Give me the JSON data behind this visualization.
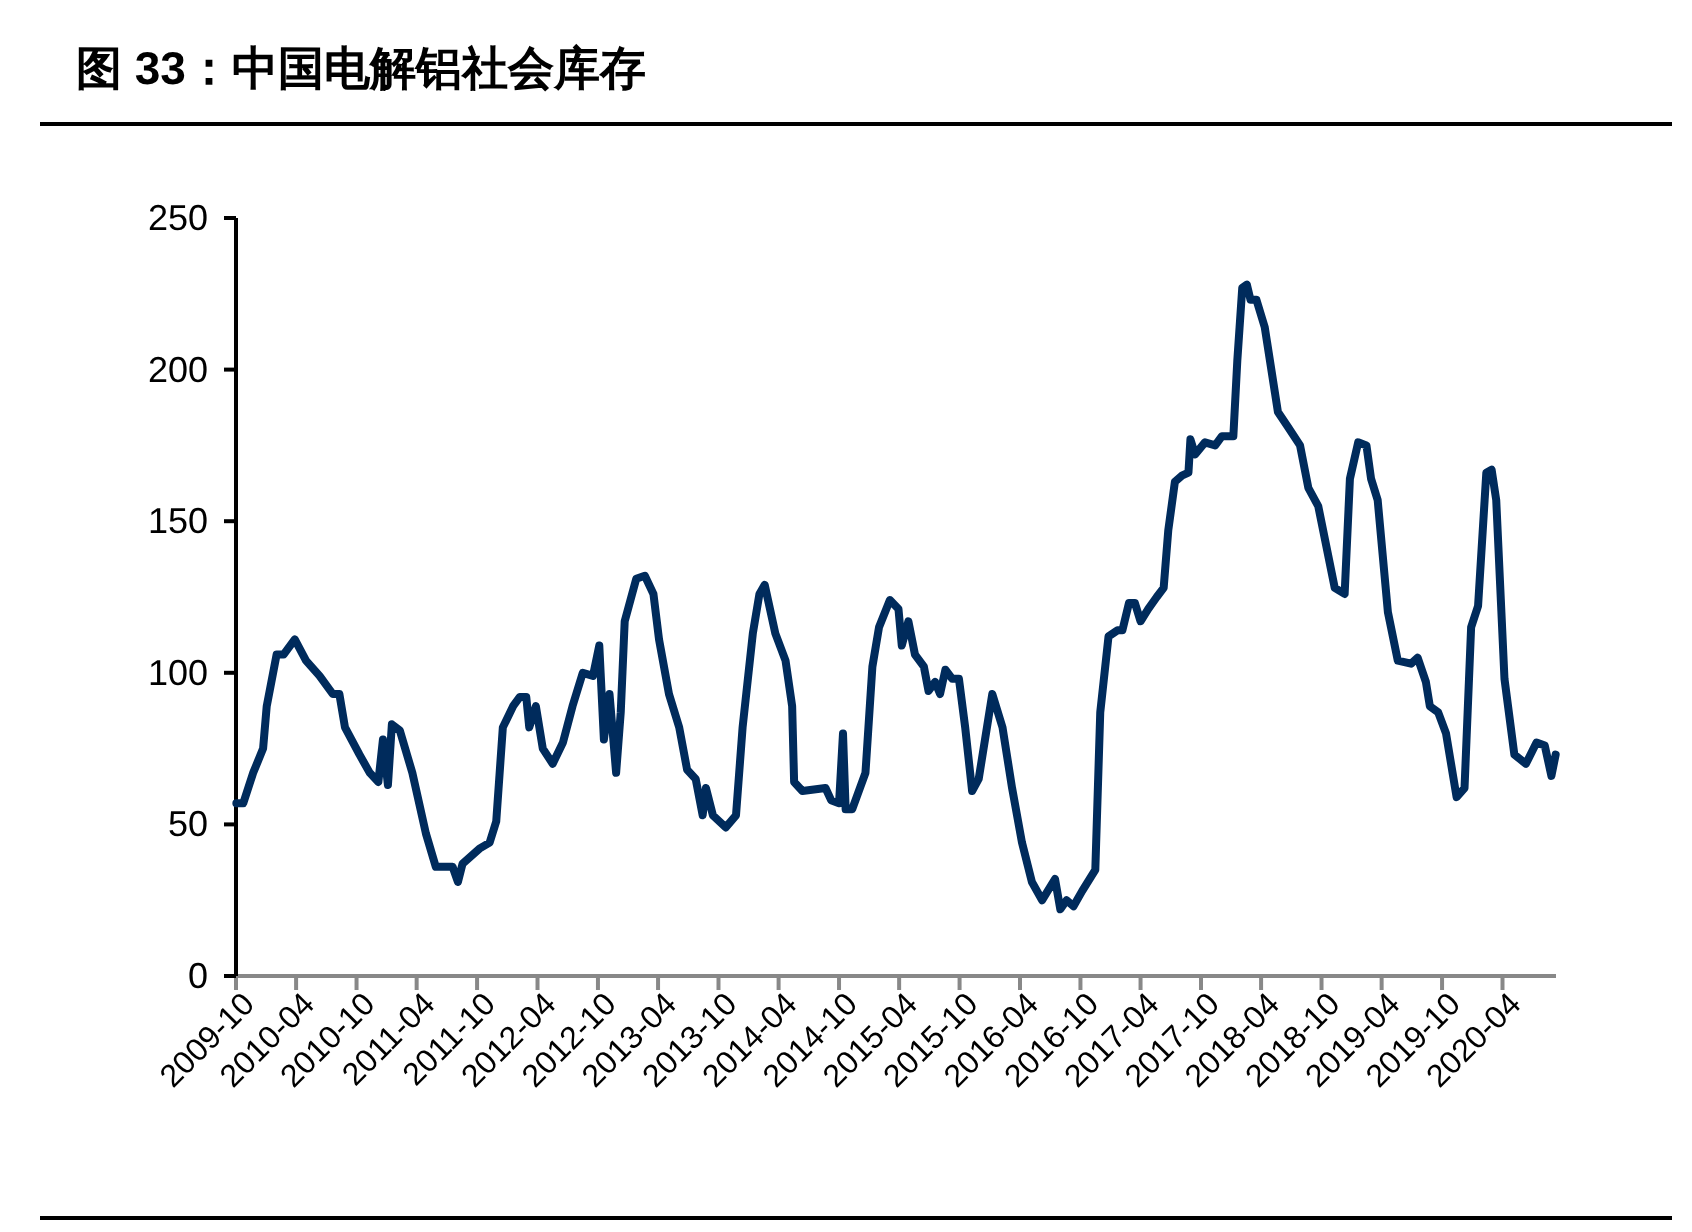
{
  "chart_data": {
    "type": "line",
    "title": "图 33：中国电解铝社会库存",
    "x": [
      "2009-10-02",
      "2009-10-23",
      "2009-11-22",
      "2009-12-22",
      "2010-01-02",
      "2010-02-01",
      "2010-02-22",
      "2010-03-28",
      "2010-05-01",
      "2010-06-11",
      "2010-07-21",
      "2010-08-10",
      "2010-08-27",
      "2010-10-10",
      "2010-11-10",
      "2010-12-06",
      "2010-12-20",
      "2011-01-04",
      "2011-01-16",
      "2011-02-09",
      "2011-03-19",
      "2011-04-29",
      "2011-05-29",
      "2011-07-19",
      "2011-08-04",
      "2011-08-18",
      "2011-10-08",
      "2011-11-08",
      "2011-11-28",
      "2011-12-18",
      "2012-01-18",
      "2012-02-07",
      "2012-02-27",
      "2012-03-07",
      "2012-03-27",
      "2012-04-17",
      "2012-05-17",
      "2012-06-17",
      "2012-07-16",
      "2012-08-16",
      "2012-09-16",
      "2012-10-05",
      "2012-10-19",
      "2012-11-05",
      "2012-11-25",
      "2012-12-09",
      "2012-12-21",
      "2013-01-25",
      "2013-02-20",
      "2013-03-18",
      "2013-04-04",
      "2013-05-04",
      "2013-06-04",
      "2013-06-28",
      "2013-07-24",
      "2013-08-14",
      "2013-08-24",
      "2013-09-14",
      "2013-10-23",
      "2013-11-23",
      "2013-12-13",
      "2014-01-13",
      "2014-02-02",
      "2014-02-18",
      "2014-03-22",
      "2014-04-22",
      "2014-05-12",
      "2014-05-18",
      "2014-06-12",
      "2014-08-21",
      "2014-09-07",
      "2014-10-01",
      "2014-10-13",
      "2014-10-21",
      "2014-11-10",
      "2014-12-20",
      "2015-01-10",
      "2015-01-30",
      "2015-03-04",
      "2015-03-30",
      "2015-04-09",
      "2015-04-29",
      "2015-05-19",
      "2015-06-15",
      "2015-06-29",
      "2015-07-19",
      "2015-08-03",
      "2015-08-19",
      "2015-09-09",
      "2015-09-29",
      "2015-10-18",
      "2015-11-08",
      "2015-11-28",
      "2016-01-08",
      "2016-02-08",
      "2016-03-08",
      "2016-04-07",
      "2016-05-07",
      "2016-06-07",
      "2016-07-16",
      "2016-08-01",
      "2016-08-20",
      "2016-09-10",
      "2016-10-06",
      "2016-11-15",
      "2016-11-30",
      "2016-12-25",
      "2017-01-21",
      "2017-02-05",
      "2017-02-25",
      "2017-03-15",
      "2017-04-01",
      "2017-04-24",
      "2017-05-20",
      "2017-06-10",
      "2017-06-24",
      "2017-07-14",
      "2017-08-04",
      "2017-08-24",
      "2017-08-30",
      "2017-09-13",
      "2017-10-13",
      "2017-11-13",
      "2017-12-03",
      "2018-01-07",
      "2018-01-19",
      "2018-02-03",
      "2018-02-17",
      "2018-02-28",
      "2018-03-18",
      "2018-04-12",
      "2018-05-22",
      "2018-06-22",
      "2018-07-28",
      "2018-08-22",
      "2018-09-21",
      "2018-11-10",
      "2018-12-10",
      "2018-12-26",
      "2019-01-20",
      "2019-02-14",
      "2019-02-28",
      "2019-03-20",
      "2019-04-20",
      "2019-05-20",
      "2019-06-29",
      "2019-07-19",
      "2019-08-13",
      "2019-08-25",
      "2019-09-19",
      "2019-10-13",
      "2019-11-14",
      "2019-12-08",
      "2019-12-28",
      "2020-01-18",
      "2020-02-12",
      "2020-02-28",
      "2020-03-13",
      "2020-04-07",
      "2020-05-07",
      "2020-06-11",
      "2020-07-13",
      "2020-08-07",
      "2020-08-27",
      "2020-09-09"
    ],
    "series": [
      {
        "color": "#002b5c",
        "values": [
          57,
          57,
          67,
          75,
          89,
          106,
          106,
          111,
          104,
          99,
          93,
          93,
          82,
          73,
          67,
          64,
          78,
          63,
          83,
          81,
          67,
          47,
          36,
          36,
          31,
          37,
          42,
          44,
          51,
          82,
          89,
          92,
          92,
          82,
          89,
          75,
          70,
          77,
          89,
          100,
          99,
          109,
          78,
          93,
          67,
          87,
          117,
          131,
          132,
          126,
          111,
          93,
          82,
          68,
          65,
          53,
          62,
          53,
          49,
          53,
          82,
          113,
          126,
          129,
          113,
          104,
          89,
          64,
          61,
          62,
          58,
          57,
          80,
          55,
          55,
          67,
          102,
          115,
          124,
          121,
          109,
          117,
          106,
          102,
          94,
          97,
          93,
          101,
          98,
          98,
          82,
          61,
          65,
          93,
          82,
          62,
          44,
          31,
          25,
          32,
          22,
          25,
          23,
          28,
          35,
          87,
          112,
          114,
          114,
          123,
          123,
          117,
          121,
          125,
          128,
          147,
          163,
          165,
          166,
          177,
          172,
          176,
          175,
          178,
          178,
          203,
          227,
          228,
          223,
          223,
          214,
          186,
          181,
          175,
          161,
          155,
          128,
          126,
          164,
          176,
          175,
          164,
          157,
          120,
          104,
          103,
          105,
          97,
          89,
          87,
          80,
          59,
          62,
          115,
          122,
          166,
          167,
          157,
          98,
          73,
          70,
          77,
          76,
          66,
          73
        ]
      }
    ],
    "xlim": [
      "2009-10-01",
      "2020-09-10"
    ],
    "xticks": [
      "2009-10",
      "2010-04",
      "2010-10",
      "2011-04",
      "2011-10",
      "2012-04",
      "2012-10",
      "2013-04",
      "2013-10",
      "2014-04",
      "2014-10",
      "2015-04",
      "2015-10",
      "2016-04",
      "2016-10",
      "2017-04",
      "2017-10",
      "2018-04",
      "2018-10",
      "2019-04",
      "2019-10",
      "2020-04"
    ],
    "ylim": [
      0,
      250
    ],
    "yticks": [
      0,
      50,
      100,
      150,
      200,
      250
    ],
    "grid": false,
    "marker": "none",
    "line_style": "solid"
  }
}
